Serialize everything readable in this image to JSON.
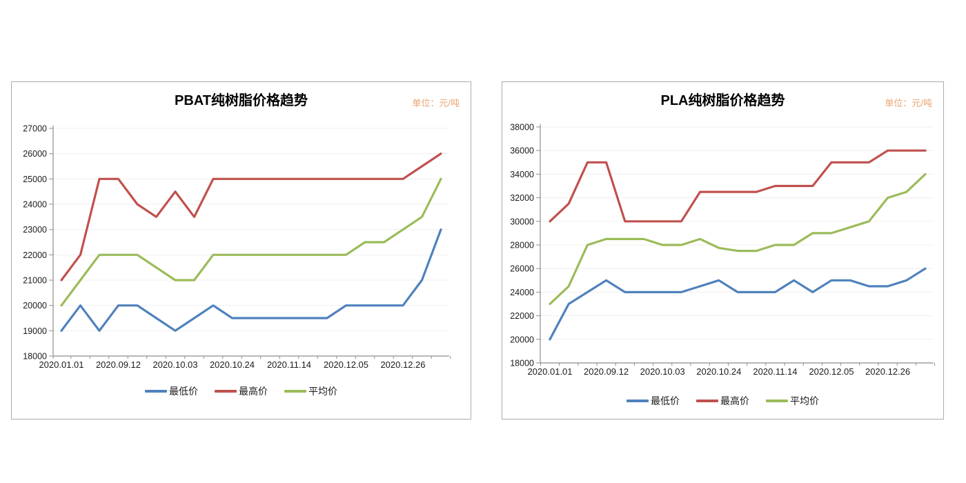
{
  "chart_data": [
    {
      "type": "line",
      "title": "PBAT纯树脂价格趋势",
      "unit_label": "单位：元/吨",
      "legend_position": "bottom",
      "grid": true,
      "y_axis": {
        "min": 18000,
        "max": 27000,
        "step": 1000
      },
      "x_axis": {
        "labels_every": 3,
        "categories": [
          "2020.01.01",
          "",
          "",
          "2020.09.12",
          "",
          "",
          "2020.10.03",
          "",
          "",
          "2020.10.24",
          "",
          "",
          "2020.11.14",
          "",
          "",
          "2020.12.05",
          "",
          "",
          "2020.12.26",
          "",
          ""
        ]
      },
      "series": [
        {
          "key": "min-price",
          "name": "最低价",
          "color": "#4F81BD",
          "values": [
            19000,
            20000,
            19000,
            20000,
            20000,
            19500,
            19000,
            19500,
            20000,
            19500,
            19500,
            19500,
            19500,
            19500,
            19500,
            20000,
            20000,
            20000,
            20000,
            21000,
            23000
          ]
        },
        {
          "key": "max-price",
          "name": "最高价",
          "color": "#C0504D",
          "values": [
            21000,
            22000,
            25000,
            25000,
            24000,
            23500,
            24500,
            23500,
            25000,
            25000,
            25000,
            25000,
            25000,
            25000,
            25000,
            25000,
            25000,
            25000,
            25000,
            25500,
            26000
          ]
        },
        {
          "key": "avg-price",
          "name": "平均价",
          "color": "#9BBB59",
          "values": [
            20000,
            21000,
            22000,
            22000,
            22000,
            21500,
            21000,
            21000,
            22000,
            22000,
            22000,
            22000,
            22000,
            22000,
            22000,
            22000,
            22500,
            22500,
            23000,
            23500,
            25000
          ]
        }
      ]
    },
    {
      "type": "line",
      "title": "PLA纯树脂价格趋势",
      "unit_label": "单位：元/吨",
      "legend_position": "bottom",
      "grid": true,
      "y_axis": {
        "min": 18000,
        "max": 38000,
        "step": 2000
      },
      "x_axis": {
        "labels_every": 3,
        "categories": [
          "2020.01.01",
          "",
          "",
          "2020.09.12",
          "",
          "",
          "2020.10.03",
          "",
          "",
          "2020.10.24",
          "",
          "",
          "2020.11.14",
          "",
          "",
          "2020.12.05",
          "",
          "",
          "2020.12.26",
          "",
          ""
        ]
      },
      "series": [
        {
          "key": "min-price",
          "name": "最低价",
          "color": "#4F81BD",
          "values": [
            20000,
            23000,
            24000,
            25000,
            24000,
            24000,
            24000,
            24000,
            24500,
            25000,
            24000,
            24000,
            24000,
            25000,
            24000,
            25000,
            25000,
            24500,
            24500,
            25000,
            26000
          ]
        },
        {
          "key": "max-price",
          "name": "最高价",
          "color": "#C0504D",
          "values": [
            30000,
            31500,
            35000,
            35000,
            30000,
            30000,
            30000,
            30000,
            32500,
            32500,
            32500,
            32500,
            33000,
            33000,
            33000,
            35000,
            35000,
            35000,
            36000,
            36000,
            36000
          ]
        },
        {
          "key": "avg-price",
          "name": "平均价",
          "color": "#9BBB59",
          "values": [
            23000,
            24500,
            28000,
            28500,
            28500,
            28500,
            28000,
            28000,
            28500,
            27750,
            27500,
            27500,
            28000,
            28000,
            29000,
            29000,
            29500,
            30000,
            32000,
            32500,
            34000
          ]
        }
      ]
    }
  ],
  "colors": {
    "axis": "#8C8C8C",
    "grid": "#EFEFEF",
    "tick_label": "#1A1A1A",
    "unit_label": "#EBA36F",
    "panel_border": "#ABABAB"
  }
}
